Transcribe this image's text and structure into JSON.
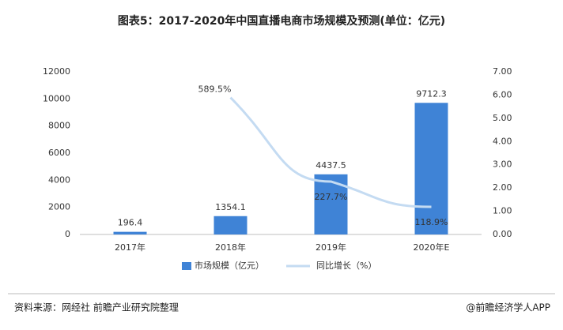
{
  "chart_data": {
    "type": "bar",
    "title": "图表5：2017-2020年中国直播电商市场规模及预测(单位：亿元)",
    "categories": [
      "2017年",
      "2018年",
      "2019年",
      "2020年E"
    ],
    "series": [
      {
        "name": "市场规模（亿元）",
        "type": "bar",
        "color": "#3f83d6",
        "values": [
          196.4,
          1354.1,
          4437.5,
          9712.3
        ]
      },
      {
        "name": "同比增长（%）",
        "type": "line",
        "axis": "y2",
        "color": "#c4dbf2",
        "values": [
          null,
          5.895,
          2.277,
          1.189
        ],
        "value_labels": [
          null,
          "589.5%",
          "227.7%",
          "118.9%"
        ]
      }
    ],
    "ylim": [
      0,
      12000
    ],
    "yticks": [
      0,
      2000,
      4000,
      6000,
      8000,
      10000,
      12000
    ],
    "y2lim": [
      0,
      7
    ],
    "y2ticks": [
      {
        "value": 0,
        "label": "0.00"
      },
      {
        "value": 1,
        "label": "1.00"
      },
      {
        "value": 2,
        "label": "2.00"
      },
      {
        "value": 3,
        "label": "3.00"
      },
      {
        "value": 4,
        "label": "4.00"
      },
      {
        "value": 5,
        "label": "5.00"
      },
      {
        "value": 6,
        "label": "6.00"
      },
      {
        "value": 7,
        "label": "7.00"
      }
    ],
    "legend": "bottom",
    "grid": false,
    "source": "资料来源：网经社 前瞻产业研究院整理",
    "credit": "@前瞻经济学人APP"
  }
}
